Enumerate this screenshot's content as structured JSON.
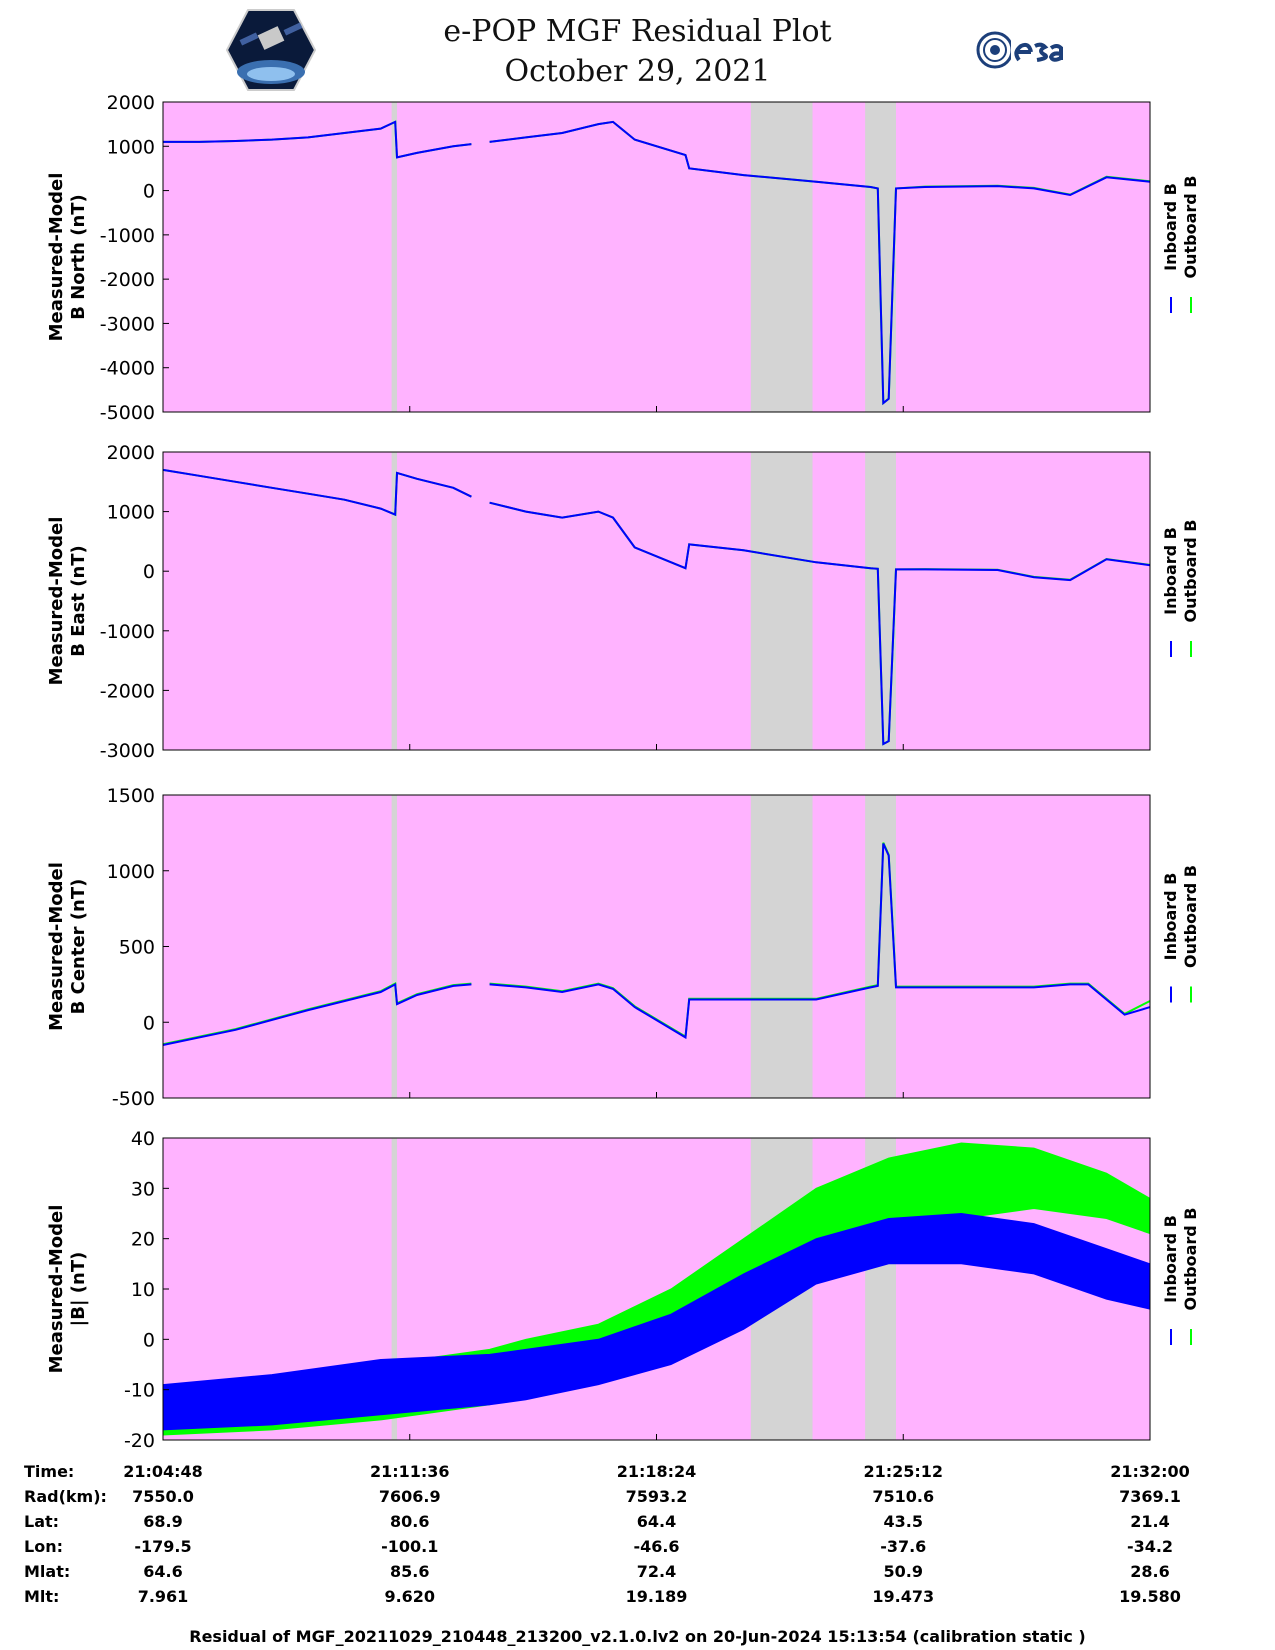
{
  "title_line1": "e-POP MGF Residual Plot",
  "title_line2": "October 29, 2021",
  "logo_left_icon": "epop-satellite-logo-icon",
  "logo_right_icon": "esa-logo-icon",
  "colors": {
    "background": "#ffb3ff",
    "data_gap": "#d4d4d4",
    "inboard": "#0000ff",
    "outboard": "#00ff00"
  },
  "legend": {
    "inboard": "Inboard B",
    "outboard": "Outboard B"
  },
  "chart_data": [
    {
      "type": "line",
      "ylabel": [
        "Measured-Model",
        "B North (nT)"
      ],
      "ylim": [
        -5000,
        2000
      ],
      "yticks": [
        2000,
        1000,
        0,
        -1000,
        -2000,
        -3000,
        -4000,
        -5000
      ],
      "x_range_minutes": [
        0,
        27.2
      ],
      "gaps": [
        [
          6.3,
          6.45
        ],
        [
          16.2,
          17.9
        ],
        [
          19.35,
          20.2
        ]
      ],
      "series": [
        {
          "name": "Inboard B",
          "x": [
            0,
            1,
            2,
            3,
            4,
            5,
            6,
            6.4,
            6.45,
            7,
            8,
            8.5,
            8.6,
            9,
            10,
            11,
            12,
            12.4,
            13,
            14.4,
            14.5,
            16,
            18,
            19.5,
            19.7,
            19.85,
            20,
            20.2,
            21,
            23,
            24,
            25,
            26,
            27.2
          ],
          "y": [
            1100,
            1100,
            1120,
            1150,
            1200,
            1300,
            1400,
            1550,
            750,
            850,
            1000,
            1050,
            null,
            1100,
            1200,
            1300,
            1500,
            1550,
            1150,
            800,
            500,
            350,
            200,
            80,
            50,
            -4800,
            -4700,
            50,
            80,
            100,
            50,
            -100,
            300,
            200
          ]
        },
        {
          "name": "Outboard B",
          "x": [
            0,
            1,
            2,
            3,
            4,
            5,
            6,
            6.4,
            6.45,
            7,
            8,
            8.5,
            8.6,
            9,
            10,
            11,
            12,
            12.4,
            13,
            14.4,
            14.5,
            16,
            18,
            19.5,
            19.7,
            19.85,
            20,
            20.2,
            21,
            23,
            24,
            25,
            26,
            27.2
          ],
          "y": [
            1100,
            1100,
            1120,
            1150,
            1200,
            1300,
            1400,
            1550,
            750,
            850,
            1000,
            1050,
            null,
            1100,
            1200,
            1300,
            1500,
            1550,
            1150,
            800,
            500,
            350,
            200,
            80,
            50,
            -4800,
            -4700,
            50,
            90,
            110,
            60,
            -90,
            310,
            210
          ]
        }
      ]
    },
    {
      "type": "line",
      "ylabel": [
        "Measured-Model",
        "B East (nT)"
      ],
      "ylim": [
        -3000,
        2000
      ],
      "yticks": [
        2000,
        1000,
        0,
        -1000,
        -2000,
        -3000
      ],
      "x_range_minutes": [
        0,
        27.2
      ],
      "gaps": [
        [
          6.3,
          6.45
        ],
        [
          16.2,
          17.9
        ],
        [
          19.35,
          20.2
        ]
      ],
      "series": [
        {
          "name": "Inboard B",
          "x": [
            0,
            1,
            2,
            3,
            4,
            5,
            6,
            6.4,
            6.45,
            7,
            8,
            8.5,
            8.6,
            9,
            10,
            11,
            12,
            12.4,
            13,
            14.4,
            14.5,
            16,
            18,
            19.5,
            19.7,
            19.85,
            20,
            20.2,
            21,
            23,
            24,
            25,
            26,
            27.2
          ],
          "y": [
            1700,
            1600,
            1500,
            1400,
            1300,
            1200,
            1050,
            950,
            1650,
            1550,
            1400,
            1250,
            null,
            1150,
            1000,
            900,
            1000,
            900,
            400,
            50,
            450,
            350,
            150,
            50,
            40,
            -2900,
            -2850,
            30,
            30,
            20,
            -100,
            -150,
            200,
            100
          ]
        },
        {
          "name": "Outboard B",
          "x": [
            0,
            1,
            2,
            3,
            4,
            5,
            6,
            6.4,
            6.45,
            7,
            8,
            8.5,
            8.6,
            9,
            10,
            11,
            12,
            12.4,
            13,
            14.4,
            14.5,
            16,
            18,
            19.5,
            19.7,
            19.85,
            20,
            20.2,
            21,
            23,
            24,
            25,
            26,
            27.2
          ],
          "y": [
            1700,
            1600,
            1500,
            1400,
            1300,
            1200,
            1050,
            950,
            1650,
            1550,
            1400,
            1250,
            null,
            1150,
            1000,
            900,
            1000,
            900,
            400,
            50,
            450,
            350,
            150,
            50,
            40,
            -2900,
            -2850,
            30,
            35,
            25,
            -95,
            -145,
            205,
            105
          ]
        }
      ]
    },
    {
      "type": "line",
      "ylabel": [
        "Measured-Model",
        "B Center (nT)"
      ],
      "ylim": [
        -500,
        1500
      ],
      "yticks": [
        1500,
        1000,
        500,
        0,
        -500
      ],
      "x_range_minutes": [
        0,
        27.2
      ],
      "gaps": [
        [
          6.3,
          6.45
        ],
        [
          16.2,
          17.9
        ],
        [
          19.35,
          20.2
        ]
      ],
      "series": [
        {
          "name": "Inboard B",
          "x": [
            0,
            2,
            4,
            6,
            6.4,
            6.45,
            7,
            8,
            8.5,
            8.6,
            9,
            10,
            11,
            12,
            12.4,
            13,
            14.4,
            14.5,
            16,
            18,
            19.5,
            19.7,
            19.85,
            20,
            20.2,
            22,
            24,
            25,
            25.5,
            26.5,
            27.2
          ],
          "y": [
            -150,
            -50,
            80,
            200,
            250,
            120,
            180,
            240,
            250,
            null,
            250,
            230,
            200,
            250,
            220,
            100,
            -100,
            150,
            150,
            150,
            230,
            240,
            1180,
            1100,
            230,
            230,
            230,
            250,
            250,
            50,
            100
          ]
        },
        {
          "name": "Outboard B",
          "x": [
            0,
            2,
            4,
            6,
            6.4,
            6.45,
            7,
            8,
            8.5,
            8.6,
            9,
            10,
            11,
            12,
            12.4,
            13,
            14.4,
            14.5,
            16,
            18,
            19.5,
            19.7,
            19.85,
            20,
            20.2,
            22,
            24,
            25,
            25.5,
            26.5,
            27.2
          ],
          "y": [
            -145,
            -45,
            85,
            205,
            255,
            125,
            185,
            245,
            255,
            null,
            255,
            235,
            205,
            255,
            225,
            105,
            -95,
            155,
            155,
            155,
            235,
            245,
            1185,
            1105,
            235,
            235,
            235,
            255,
            255,
            55,
            140
          ]
        }
      ]
    },
    {
      "type": "area",
      "ylabel": [
        "Measured-Model",
        "|B| (nT)"
      ],
      "ylim": [
        -20,
        40
      ],
      "yticks": [
        40,
        30,
        20,
        10,
        0,
        -10,
        -20
      ],
      "x_range_minutes": [
        0,
        27.2
      ],
      "gaps": [
        [
          6.3,
          6.45
        ],
        [
          16.2,
          17.9
        ],
        [
          19.35,
          20.2
        ]
      ],
      "series": [
        {
          "name": "Outboard B",
          "x": [
            0,
            3,
            6,
            9,
            10,
            12,
            14,
            16,
            18,
            20,
            22,
            24,
            26,
            27.2
          ],
          "upper": [
            -10,
            -8,
            -5,
            -2,
            0,
            3,
            10,
            20,
            30,
            36,
            39,
            38,
            33,
            28
          ],
          "lower": [
            -19,
            -18,
            -16,
            -13,
            -10,
            0,
            3,
            8,
            15,
            20,
            24,
            26,
            24,
            21
          ]
        },
        {
          "name": "Inboard B",
          "x": [
            0,
            3,
            6,
            9,
            10,
            12,
            14,
            16,
            18,
            20,
            22,
            24,
            26,
            27.2
          ],
          "upper": [
            -9,
            -7,
            -4,
            -3,
            -2,
            0,
            5,
            13,
            20,
            24,
            25,
            23,
            18,
            15
          ],
          "lower": [
            -18,
            -17,
            -15,
            -13,
            -12,
            -9,
            -5,
            2,
            11,
            15,
            15,
            13,
            8,
            6
          ]
        }
      ]
    }
  ],
  "footer": {
    "row_labels": [
      "Time:",
      "Rad(km):",
      "Lat:",
      "Lon:",
      "Mlat:",
      "Mlt:"
    ],
    "columns": [
      [
        "21:04:48",
        "7550.0",
        "68.9",
        "-179.5",
        "64.6",
        "7.961"
      ],
      [
        "21:11:36",
        "7606.9",
        "80.6",
        "-100.1",
        "85.6",
        "9.620"
      ],
      [
        "21:18:24",
        "7593.2",
        "64.4",
        "-46.6",
        "72.4",
        "19.189"
      ],
      [
        "21:25:12",
        "7510.6",
        "43.5",
        "-37.6",
        "50.9",
        "19.473"
      ],
      [
        "21:32:00",
        "7369.1",
        "21.4",
        "-34.2",
        "28.6",
        "19.580"
      ]
    ],
    "caption": "Residual of MGF_20211029_210448_213200_v2.1.0.lv2 on 20-Jun-2024 15:13:54 (calibration static )"
  }
}
